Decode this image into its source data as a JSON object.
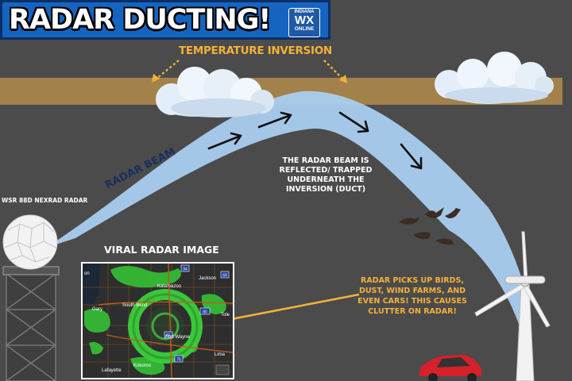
{
  "title": "RADAR DUCTING!",
  "logo": {
    "line1": "INDIANA",
    "line2": "WX",
    "line3": "ONLINE"
  },
  "labels": {
    "temperature_inversion": "TEMPERATURE INVERSION",
    "radar_beam": "RADAR BEAM",
    "beam_reflected": "THE RADAR BEAM IS REFLECTED/ TRAPPED UNDERNEATH THE INVERSION (DUCT)",
    "radar_site": "WSR 88D NEXRAD RADAR",
    "viral_image": "VIRAL RADAR IMAGE",
    "clutter_note": "RADAR PICKS UP BIRDS, DUST, WIND FARMS, AND EVEN CARS! THIS CAUSES CLUTTER ON RADAR!"
  },
  "map_labels": {
    "kalamazoo": "Kalamazoo",
    "jackson": "Jackson",
    "gary": "Gary",
    "south_bend": "South Bend",
    "toledo": "Tole",
    "fort_wayne": "Fort Wayne",
    "lima": "Lima",
    "lafayette": "Lafayette",
    "kokomo": "Kokomo",
    "interstate_94": "94",
    "interstate_69": "69",
    "interstate_75": "75",
    "interstate_80_90": "80",
    "interstate_65": "65",
    "edge_label": "on"
  },
  "colors": {
    "background": "#4b4b4b",
    "inversion_band": "#a3814a",
    "beam": "#a9cdef",
    "title_bg": "#1565c0",
    "accent_orange": "#f3b13a",
    "radar_echo": "#3ccf3c"
  },
  "icons": [
    "radome-icon",
    "radar-tower-icon",
    "cloud-icon",
    "bird-icon",
    "wind-turbine-icon",
    "car-icon",
    "arrow-icon"
  ]
}
